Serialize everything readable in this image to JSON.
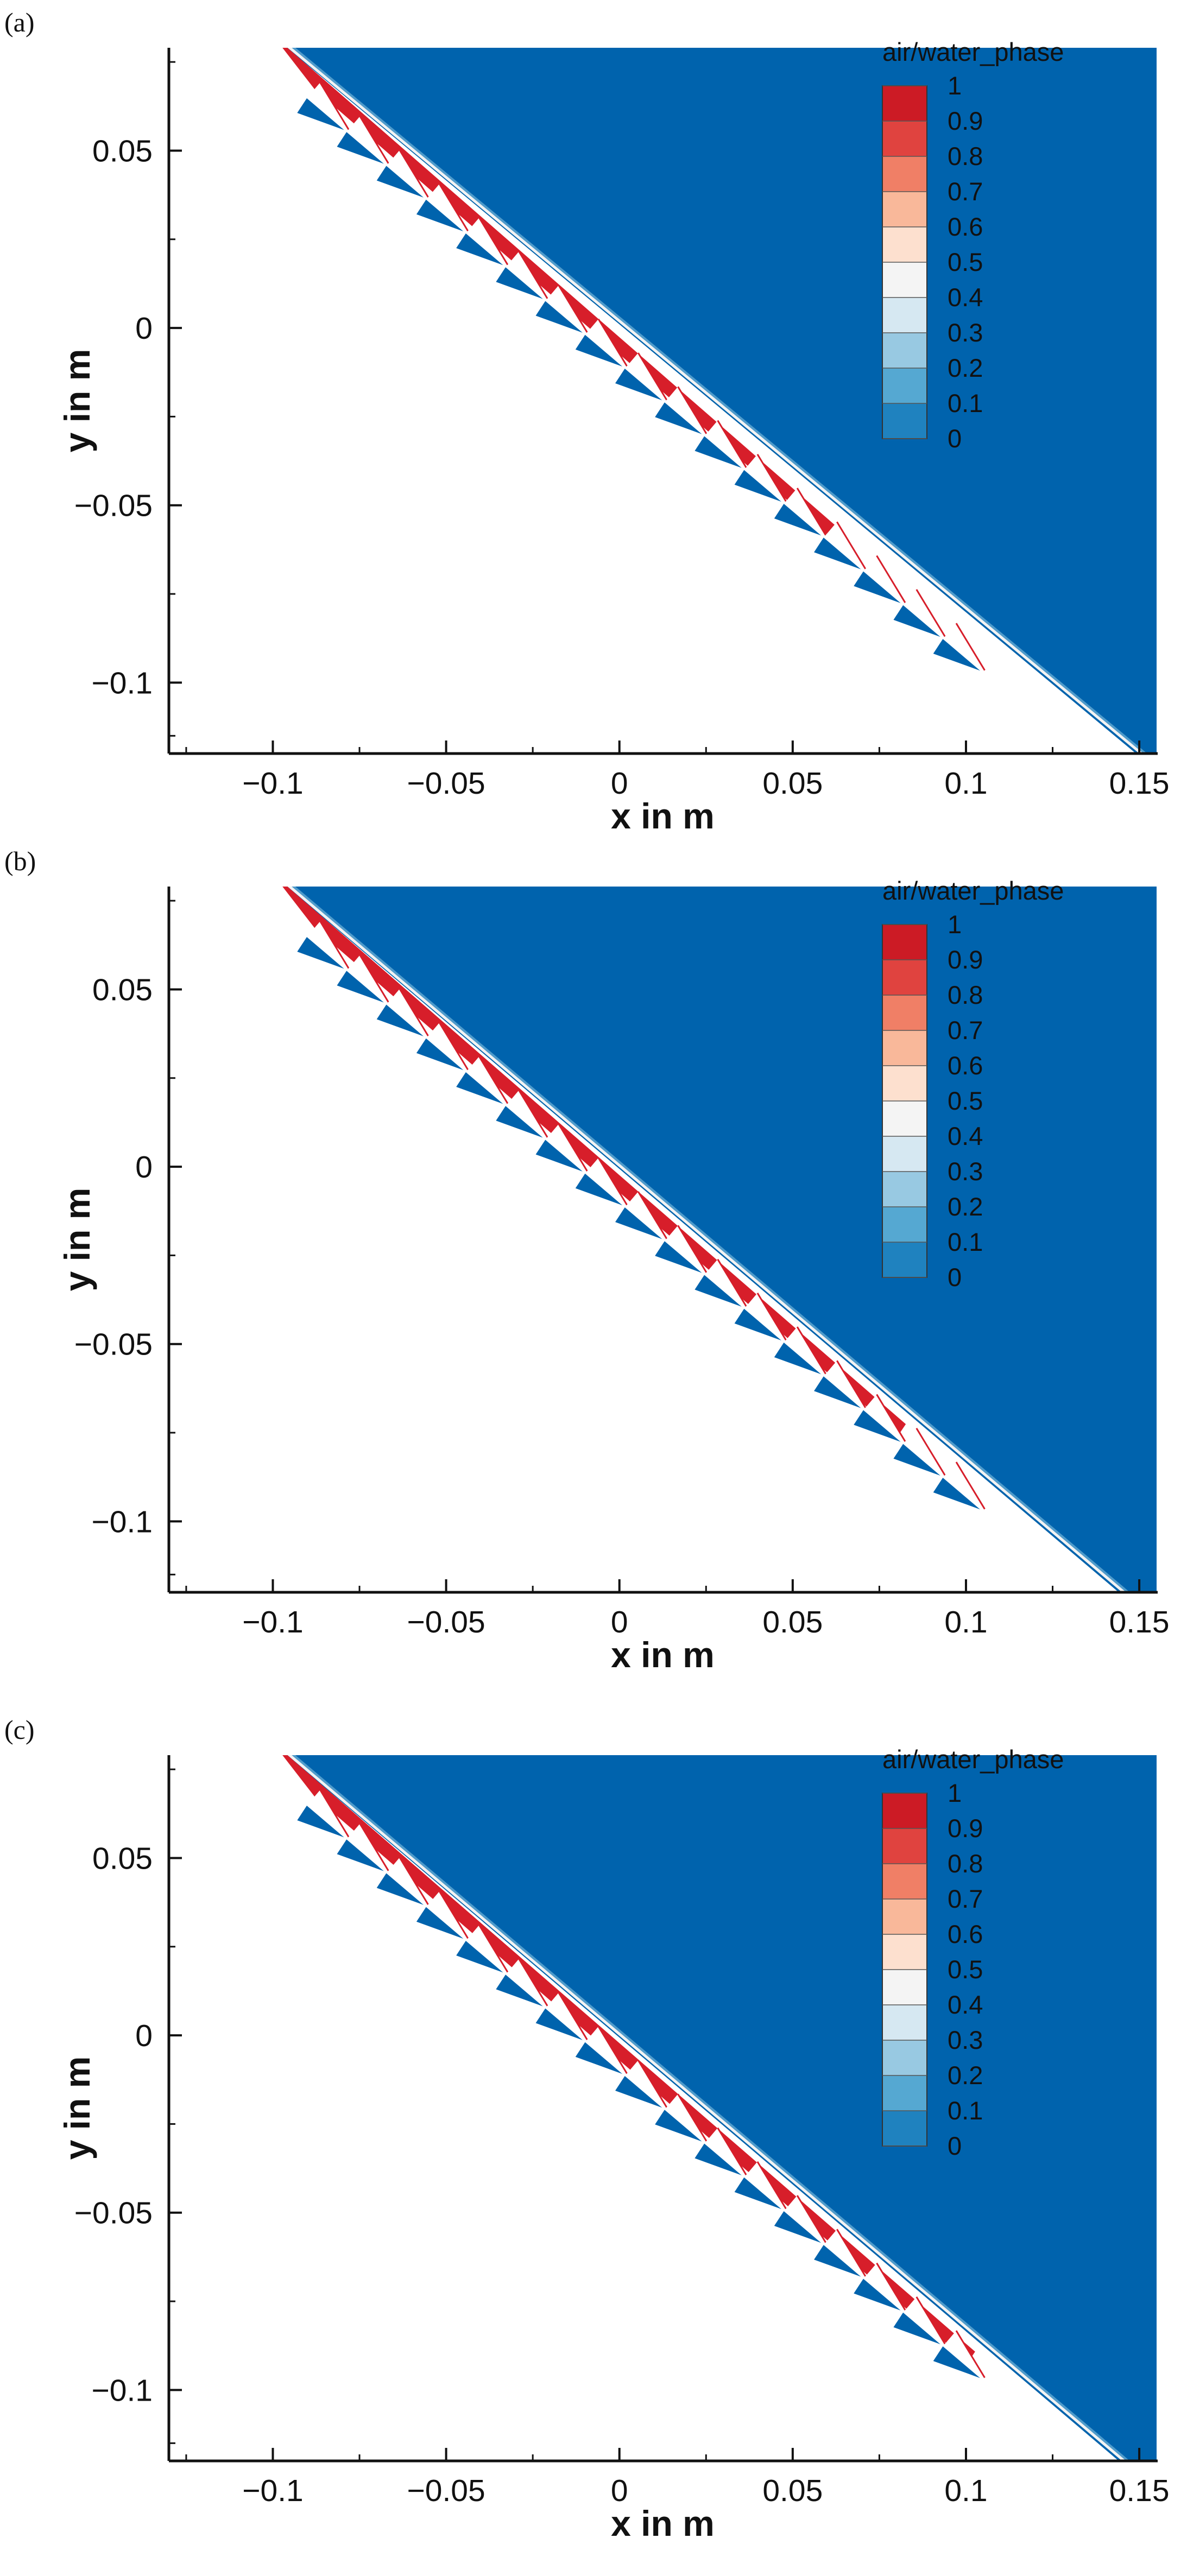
{
  "figure": {
    "colors": {
      "water": "#0063ad",
      "air": "#d71e2a",
      "background": "#ffffff",
      "axis": "#111111"
    },
    "colormap": [
      "#0465b0",
      "#1f82bf",
      "#55a8d2",
      "#98c9e2",
      "#d6e8f2",
      "#f4f4f4",
      "#fde0cf",
      "#f9b89a",
      "#f07f66",
      "#e0433f",
      "#cc1b25"
    ]
  },
  "chart_data": [
    {
      "panel_label": "(a)",
      "type": "heatmap",
      "title": "",
      "xlabel": "x in m",
      "ylabel": "y in m",
      "xlim": [
        -0.13,
        0.155
      ],
      "ylim": [
        -0.12,
        0.079
      ],
      "xticks": [
        -0.1,
        -0.05,
        0,
        0.05,
        0.1,
        0.15
      ],
      "xtick_labels": [
        "−0.1",
        "−0.05",
        "0",
        "0.05",
        "0.1",
        "0.15"
      ],
      "yticks": [
        0.05,
        0,
        -0.05,
        -0.1
      ],
      "ytick_labels": [
        "0.05",
        "0",
        "−0.05",
        "−0.1"
      ],
      "legend": {
        "title": "air/water_phase",
        "placement": "top-right",
        "levels": [
          "1",
          "0.9",
          "0.8",
          "0.7",
          "0.6",
          "0.5",
          "0.4",
          "0.3",
          "0.2",
          "0.1",
          "0"
        ]
      },
      "field": {
        "variable": "air/water_phase",
        "water_phase_value": 0,
        "air_layer_value": 1,
        "surface_line": [
          [
            -0.097,
            0.08
          ],
          [
            0.15,
            -0.12
          ]
        ],
        "air_layer_end_x": 0.06,
        "structure_start": [
          -0.09,
          0.065
        ],
        "structure_end": [
          0.105,
          -0.097
        ],
        "element_count": 17
      }
    },
    {
      "panel_label": "(b)",
      "type": "heatmap",
      "title": "",
      "xlabel": "x in m",
      "ylabel": "y in m",
      "xlim": [
        -0.13,
        0.155
      ],
      "ylim": [
        -0.12,
        0.079
      ],
      "xticks": [
        -0.1,
        -0.05,
        0,
        0.05,
        0.1,
        0.15
      ],
      "xtick_labels": [
        "−0.1",
        "−0.05",
        "0",
        "0.05",
        "0.1",
        "0.15"
      ],
      "yticks": [
        0.05,
        0,
        -0.05,
        -0.1
      ],
      "ytick_labels": [
        "0.05",
        "0",
        "−0.05",
        "−0.1"
      ],
      "legend": {
        "title": "air/water_phase",
        "placement": "top-right",
        "levels": [
          "1",
          "0.9",
          "0.8",
          "0.7",
          "0.6",
          "0.5",
          "0.4",
          "0.3",
          "0.2",
          "0.1",
          "0"
        ]
      },
      "field": {
        "variable": "air/water_phase",
        "water_phase_value": 0,
        "air_layer_value": 1,
        "surface_line": [
          [
            -0.097,
            0.08
          ],
          [
            0.145,
            -0.12
          ]
        ],
        "air_layer_end_x": 0.08,
        "structure_start": [
          -0.09,
          0.065
        ],
        "structure_end": [
          0.105,
          -0.097
        ],
        "element_count": 17
      }
    },
    {
      "panel_label": "(c)",
      "type": "heatmap",
      "title": "",
      "xlabel": "x in m",
      "ylabel": "y in m",
      "xlim": [
        -0.13,
        0.155
      ],
      "ylim": [
        -0.12,
        0.079
      ],
      "xticks": [
        -0.1,
        -0.05,
        0,
        0.05,
        0.1,
        0.15
      ],
      "xtick_labels": [
        "−0.1",
        "−0.05",
        "0",
        "0.05",
        "0.1",
        "0.15"
      ],
      "yticks": [
        0.05,
        0,
        -0.05,
        -0.1
      ],
      "ytick_labels": [
        "0.05",
        "0",
        "−0.05",
        "−0.1"
      ],
      "legend": {
        "title": "air/water_phase",
        "placement": "top-right",
        "levels": [
          "1",
          "0.9",
          "0.8",
          "0.7",
          "0.6",
          "0.5",
          "0.4",
          "0.3",
          "0.2",
          "0.1",
          "0"
        ]
      },
      "field": {
        "variable": "air/water_phase",
        "water_phase_value": 0,
        "air_layer_value": 1,
        "surface_line": [
          [
            -0.097,
            0.08
          ],
          [
            0.145,
            -0.12
          ]
        ],
        "air_layer_end_x": 0.1,
        "structure_start": [
          -0.09,
          0.065
        ],
        "structure_end": [
          0.105,
          -0.097
        ],
        "element_count": 17
      }
    }
  ]
}
